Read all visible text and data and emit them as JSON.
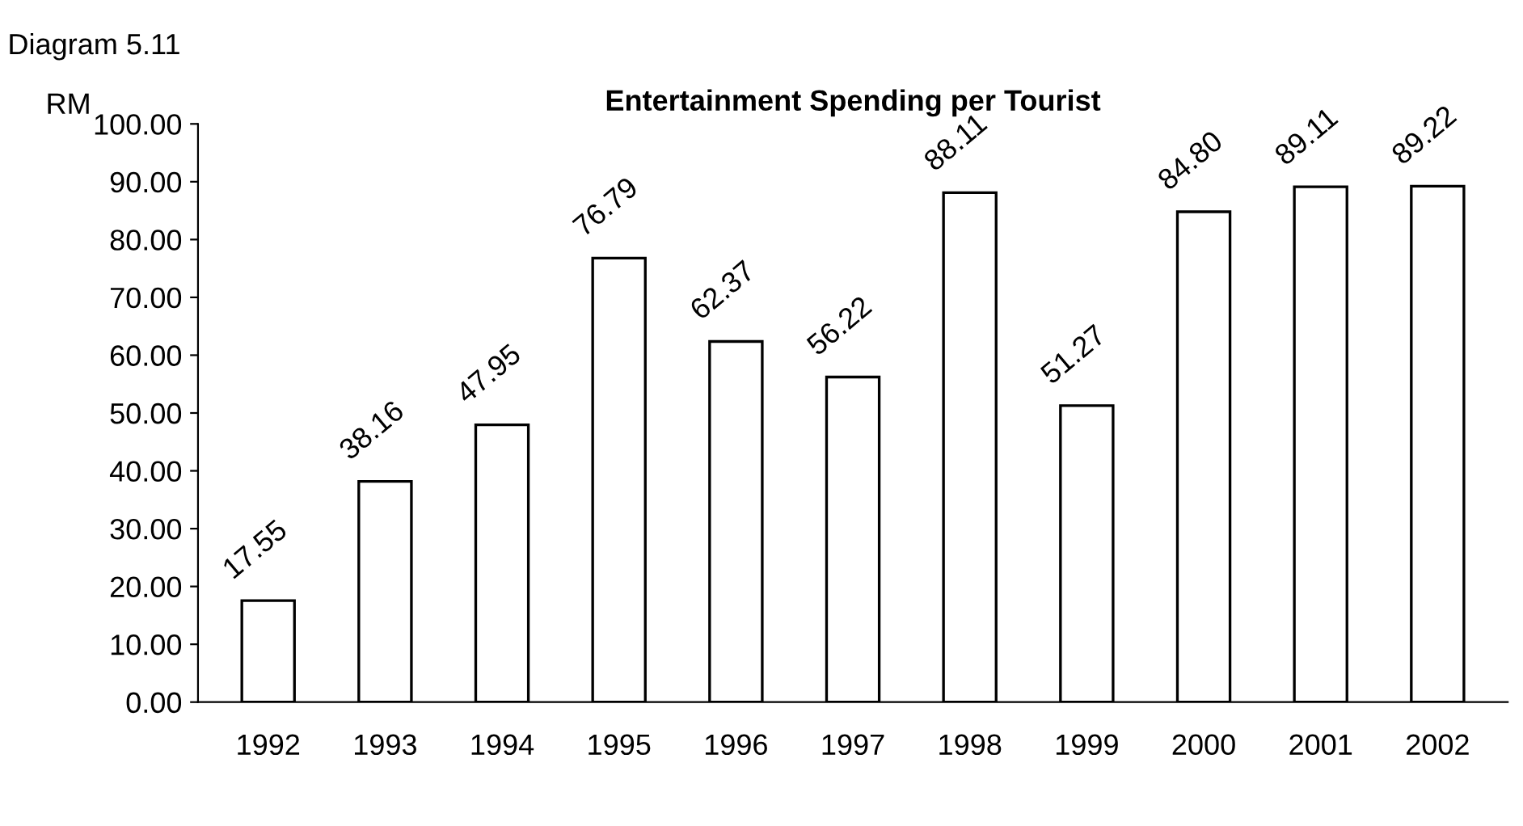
{
  "chart_data": {
    "type": "bar",
    "title": "Entertainment Spending per Tourist",
    "ylabel": "RM",
    "annotations": [
      "Diagram 5.11"
    ],
    "categories": [
      "1992",
      "1993",
      "1994",
      "1995",
      "1996",
      "1997",
      "1998",
      "1999",
      "2000",
      "2001",
      "2002"
    ],
    "values": [
      17.55,
      38.16,
      47.95,
      76.79,
      62.37,
      56.22,
      88.11,
      51.27,
      84.8,
      89.11,
      89.22
    ],
    "value_labels": [
      "17.55",
      "38.16",
      "47.95",
      "76.79",
      "62.37",
      "56.22",
      "88.11",
      "51.27",
      "84.80",
      "89.11",
      "89.22"
    ],
    "color": "#ffffff",
    "ylim": [
      0,
      100
    ],
    "yticks": [
      {
        "value": 0,
        "label": "0.00"
      },
      {
        "value": 10,
        "label": "10.00"
      },
      {
        "value": 20,
        "label": "20.00"
      },
      {
        "value": 30,
        "label": "30.00"
      },
      {
        "value": 40,
        "label": "40.00"
      },
      {
        "value": 50,
        "label": "50.00"
      },
      {
        "value": 60,
        "label": "60.00"
      },
      {
        "value": 70,
        "label": "70.00"
      },
      {
        "value": 80,
        "label": "80.00"
      },
      {
        "value": 90,
        "label": "90.00"
      },
      {
        "value": 100,
        "label": "100.00"
      }
    ],
    "grid": false,
    "legend": false
  }
}
